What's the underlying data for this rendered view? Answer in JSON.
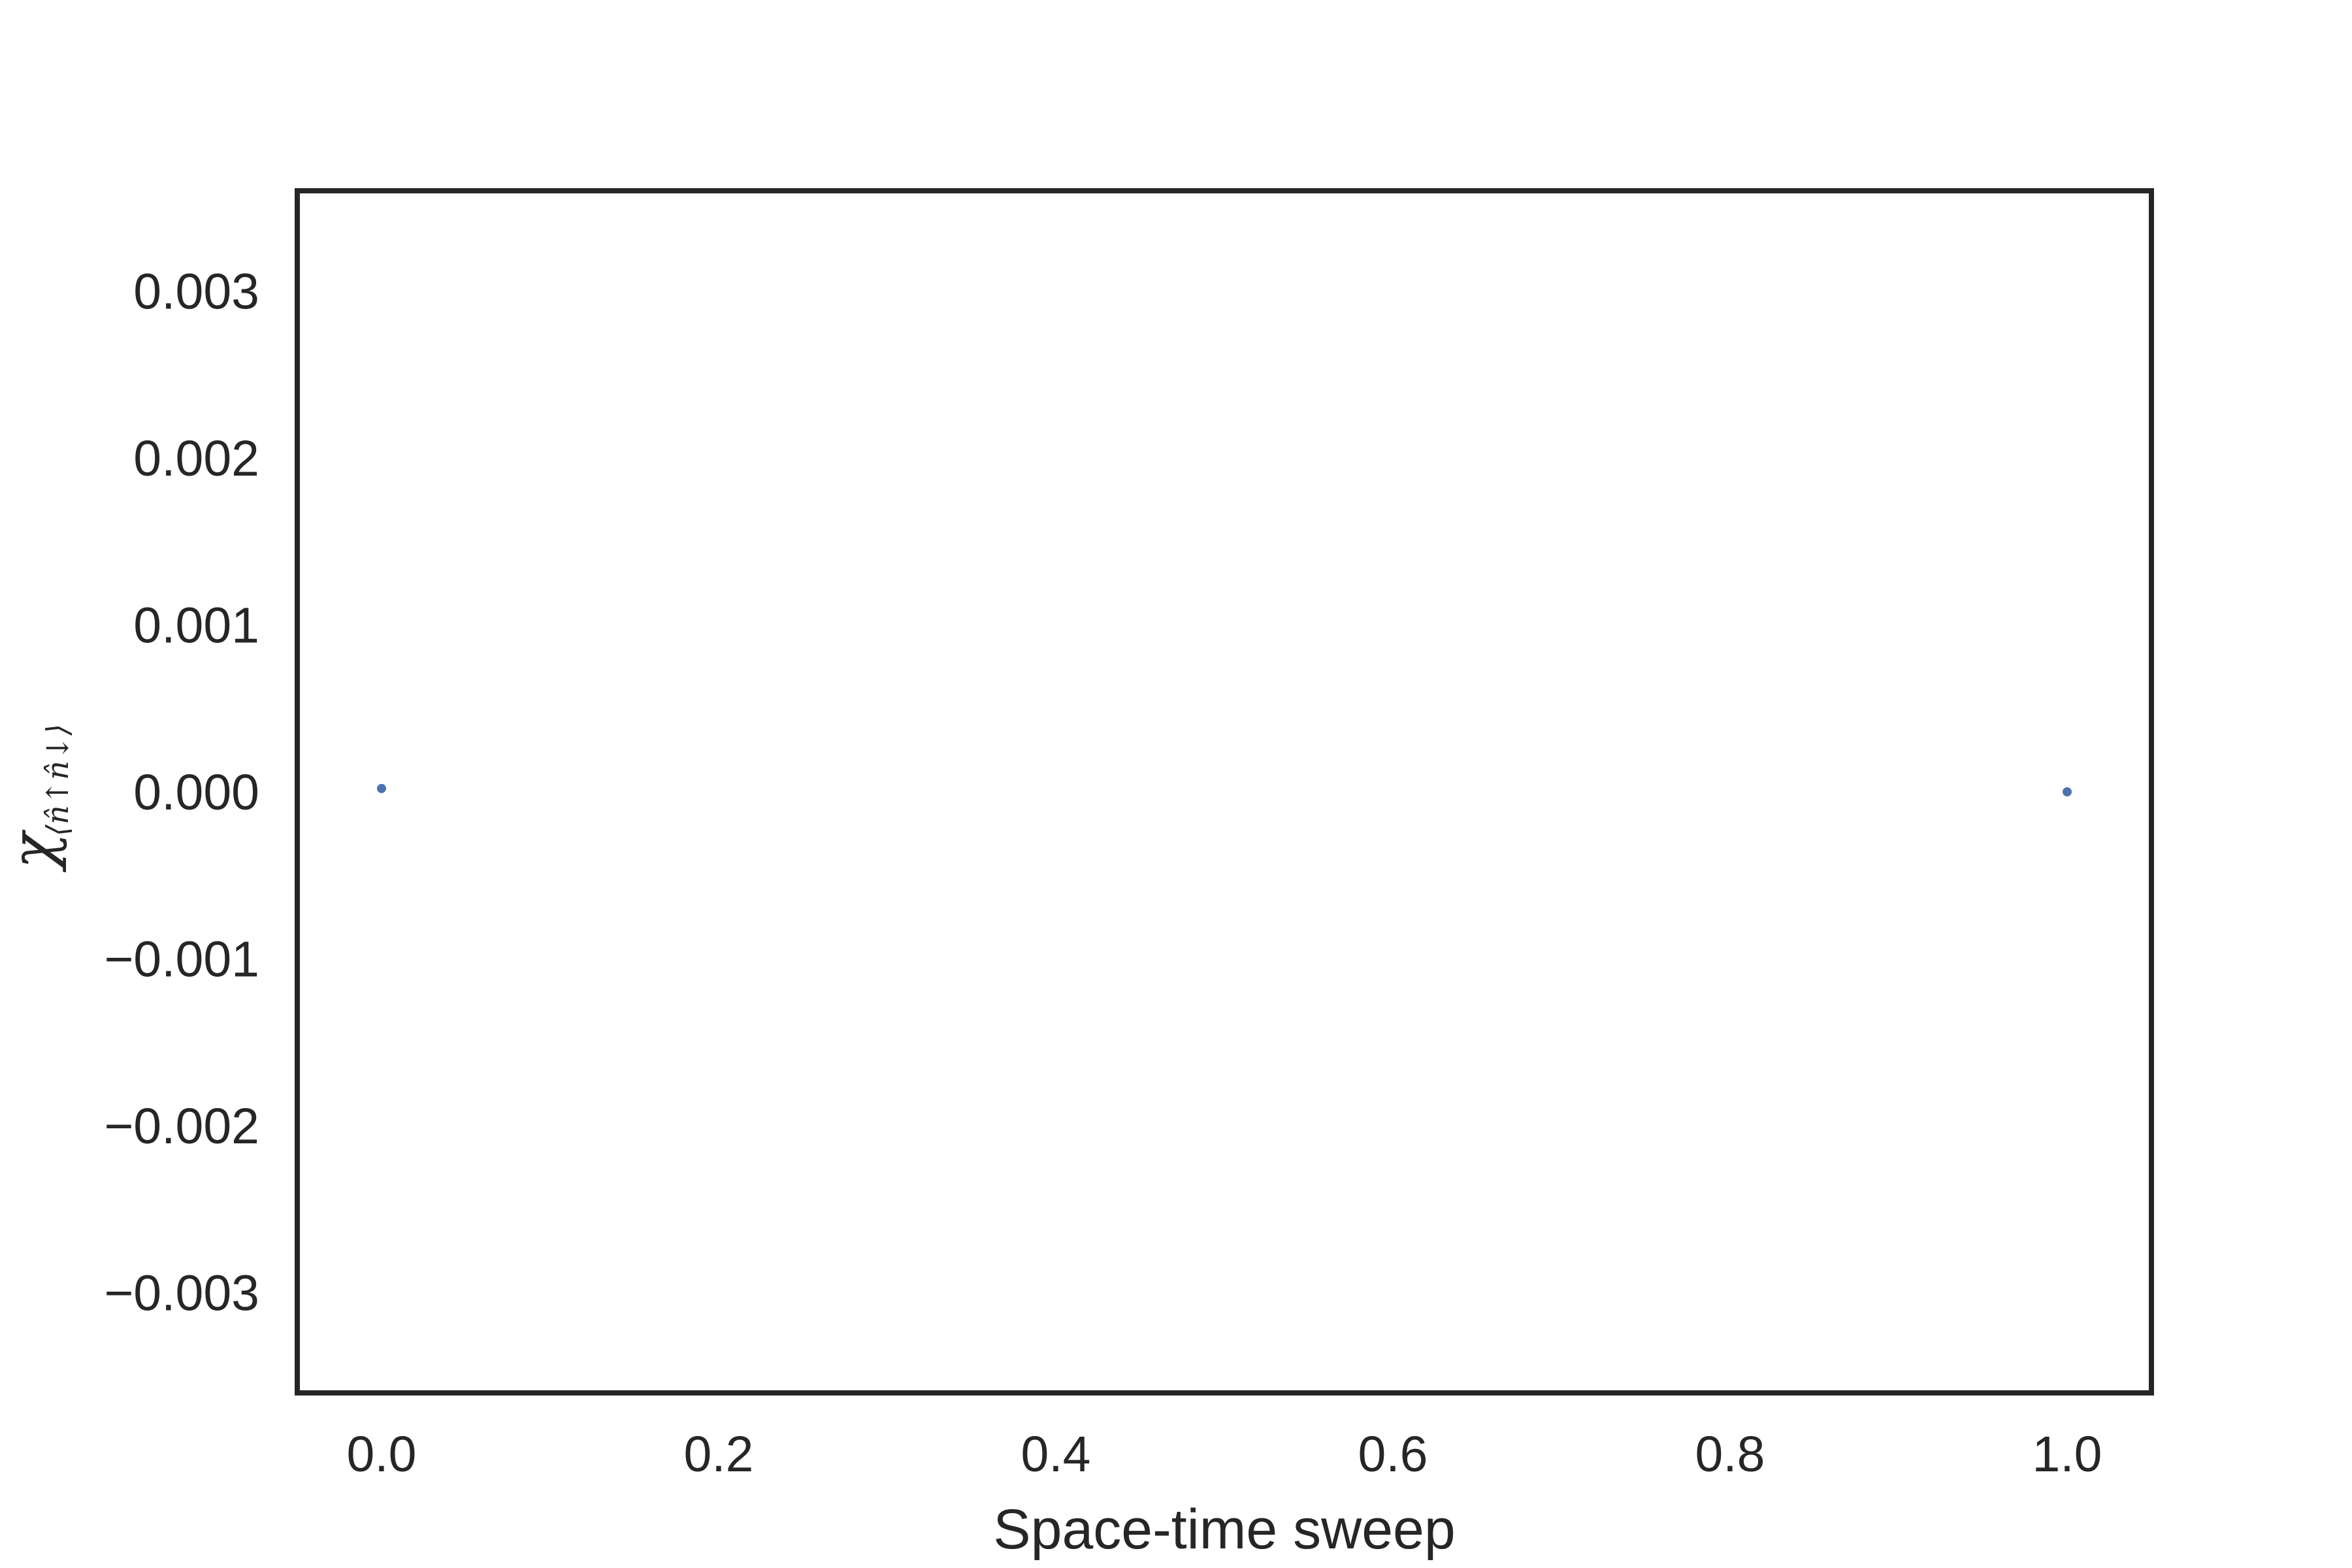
{
  "chart_data": {
    "type": "scatter",
    "xlabel": "Space-time sweep",
    "ylabel": {
      "symbol": "χ",
      "subscript": "⟨n̂↑n̂↓⟩"
    },
    "xlim": [
      -0.05,
      1.05
    ],
    "ylim": [
      -0.0036,
      0.0036
    ],
    "xticks": [
      0.0,
      0.2,
      0.4,
      0.6,
      0.8,
      1.0
    ],
    "xtick_labels": [
      "0.0",
      "0.2",
      "0.4",
      "0.6",
      "0.8",
      "1.0"
    ],
    "yticks": [
      0.003,
      0.002,
      0.001,
      0.0,
      -0.001,
      -0.002,
      -0.003
    ],
    "ytick_labels": [
      "0.003",
      "0.002",
      "0.001",
      "0.000",
      "−0.001",
      "−0.002",
      "−0.003"
    ],
    "series": [
      {
        "x": [
          0.0,
          1.0
        ],
        "y": [
          2e-05,
          0.0
        ],
        "color": "#4c72b0"
      }
    ],
    "grid": false,
    "frame_color": "#262626"
  }
}
